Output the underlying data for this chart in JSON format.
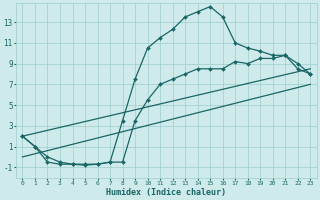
{
  "xlabel": "Humidex (Indice chaleur)",
  "xlim": [
    -0.5,
    23.5
  ],
  "ylim": [
    -2.0,
    14.8
  ],
  "yticks": [
    -1,
    1,
    3,
    5,
    7,
    9,
    11,
    13
  ],
  "xticks": [
    0,
    1,
    2,
    3,
    4,
    5,
    6,
    7,
    8,
    9,
    10,
    11,
    12,
    13,
    14,
    15,
    16,
    17,
    18,
    19,
    20,
    21,
    22,
    23
  ],
  "background_color": "#ceeaea",
  "grid_color": "#9ecece",
  "line_color": "#1a6666",
  "series": [
    {
      "x": [
        0,
        1,
        2,
        3,
        4,
        5,
        6,
        7,
        8,
        9,
        10,
        11,
        12,
        13,
        14,
        15,
        16,
        17,
        18,
        19,
        20,
        21,
        22,
        23
      ],
      "y": [
        2,
        1,
        -0.5,
        -0.7,
        -0.7,
        -0.7,
        -0.7,
        -0.5,
        3.5,
        7.5,
        10.5,
        11.5,
        12.3,
        13.5,
        14.0,
        14.5,
        13.5,
        11.0,
        10.5,
        10.2,
        9.8,
        9.8,
        9.0,
        8.0
      ],
      "marker": "D",
      "markersize": 2.0,
      "linewidth": 0.9,
      "linestyle": "-"
    },
    {
      "x": [
        0,
        1,
        2,
        3,
        4,
        5,
        6,
        7,
        8,
        9,
        10,
        11,
        12,
        13,
        14,
        15,
        16,
        17,
        18,
        19,
        20,
        21,
        22,
        23
      ],
      "y": [
        2,
        1,
        0,
        -0.5,
        -0.7,
        -0.8,
        -0.7,
        -0.5,
        -0.5,
        3.5,
        5.5,
        7.0,
        7.5,
        8.0,
        8.5,
        8.5,
        8.5,
        9.2,
        9.0,
        9.5,
        9.5,
        9.8,
        8.5,
        8.0
      ],
      "marker": "D",
      "markersize": 2.0,
      "linewidth": 0.9,
      "linestyle": "-"
    },
    {
      "x": [
        0,
        23
      ],
      "y": [
        2.0,
        8.5
      ],
      "marker": null,
      "markersize": 0,
      "linewidth": 0.9,
      "linestyle": "-"
    },
    {
      "x": [
        0,
        23
      ],
      "y": [
        0.0,
        7.0
      ],
      "marker": null,
      "markersize": 0,
      "linewidth": 0.9,
      "linestyle": "-"
    }
  ]
}
